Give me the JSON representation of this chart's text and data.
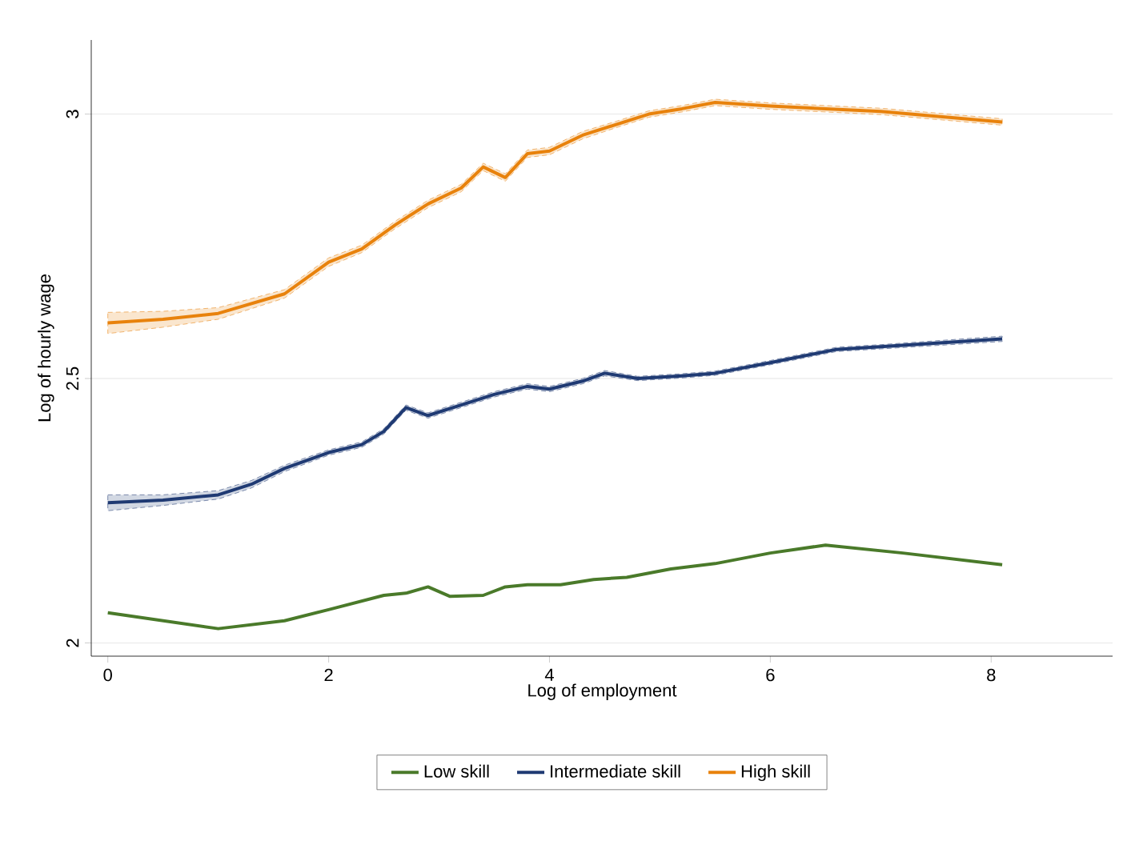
{
  "chart_data": {
    "type": "line",
    "xlabel": "Log of employment",
    "ylabel": "Log of hourly wage",
    "xlim": [
      -0.15,
      9.1
    ],
    "ylim": [
      1.975,
      3.14
    ],
    "xticks": [
      0,
      2,
      4,
      6,
      8
    ],
    "yticks": [
      2,
      2.5,
      3
    ],
    "grid": "y",
    "legend": "bottom",
    "marker": "none",
    "line_style": "solid",
    "series": [
      {
        "name": "Low skill",
        "color": "#4a7a2a",
        "x": [
          0,
          1,
          1.6,
          2,
          2.5,
          2.7,
          2.9,
          3.1,
          3.4,
          3.6,
          3.8,
          4.1,
          4.4,
          4.7,
          5.1,
          5.5,
          6,
          6.5,
          7.2,
          8.1
        ],
        "values": [
          2.057,
          2.027,
          2.042,
          2.063,
          2.09,
          2.094,
          2.106,
          2.088,
          2.09,
          2.106,
          2.11,
          2.11,
          2.12,
          2.124,
          2.14,
          2.15,
          2.17,
          2.185,
          2.17,
          2.148
        ]
      },
      {
        "name": "Intermediate skill",
        "color": "#1f3a73",
        "x": [
          0,
          0.5,
          1,
          1.3,
          1.6,
          2,
          2.3,
          2.5,
          2.7,
          2.9,
          3.2,
          3.5,
          3.8,
          4,
          4.3,
          4.5,
          4.8,
          5.2,
          5.5,
          6,
          6.6,
          7,
          8.1
        ],
        "values": [
          2.265,
          2.27,
          2.28,
          2.3,
          2.33,
          2.36,
          2.375,
          2.4,
          2.445,
          2.43,
          2.45,
          2.47,
          2.485,
          2.48,
          2.495,
          2.51,
          2.5,
          2.505,
          2.51,
          2.53,
          2.555,
          2.56,
          2.575
        ],
        "lower": [
          2.25,
          2.26,
          2.272,
          2.293,
          2.324,
          2.355,
          2.37,
          2.395,
          2.44,
          2.425,
          2.445,
          2.465,
          2.48,
          2.475,
          2.49,
          2.505,
          2.496,
          2.501,
          2.506,
          2.526,
          2.551,
          2.556,
          2.57
        ],
        "upper": [
          2.28,
          2.28,
          2.288,
          2.307,
          2.336,
          2.365,
          2.38,
          2.405,
          2.45,
          2.435,
          2.455,
          2.475,
          2.49,
          2.485,
          2.5,
          2.515,
          2.504,
          2.509,
          2.514,
          2.534,
          2.559,
          2.564,
          2.58
        ]
      },
      {
        "name": "High skill",
        "color": "#e8820c",
        "x": [
          0,
          0.5,
          1,
          1.6,
          2,
          2.3,
          2.6,
          2.9,
          3.2,
          3.4,
          3.6,
          3.8,
          4,
          4.3,
          4.6,
          4.9,
          5.2,
          5.5,
          6,
          7,
          8.1
        ],
        "values": [
          2.605,
          2.612,
          2.623,
          2.66,
          2.72,
          2.745,
          2.79,
          2.83,
          2.86,
          2.9,
          2.88,
          2.925,
          2.93,
          2.96,
          2.98,
          3.0,
          3.01,
          3.022,
          3.015,
          3.005,
          2.985
        ],
        "lower": [
          2.585,
          2.597,
          2.612,
          2.652,
          2.712,
          2.738,
          2.783,
          2.823,
          2.853,
          2.893,
          2.873,
          2.918,
          2.923,
          2.953,
          2.974,
          2.994,
          3.004,
          3.016,
          3.009,
          2.999,
          2.979
        ],
        "upper": [
          2.625,
          2.627,
          2.634,
          2.668,
          2.728,
          2.752,
          2.797,
          2.837,
          2.867,
          2.907,
          2.887,
          2.932,
          2.937,
          2.967,
          2.986,
          3.006,
          3.016,
          3.028,
          3.021,
          3.011,
          2.991
        ]
      }
    ]
  }
}
